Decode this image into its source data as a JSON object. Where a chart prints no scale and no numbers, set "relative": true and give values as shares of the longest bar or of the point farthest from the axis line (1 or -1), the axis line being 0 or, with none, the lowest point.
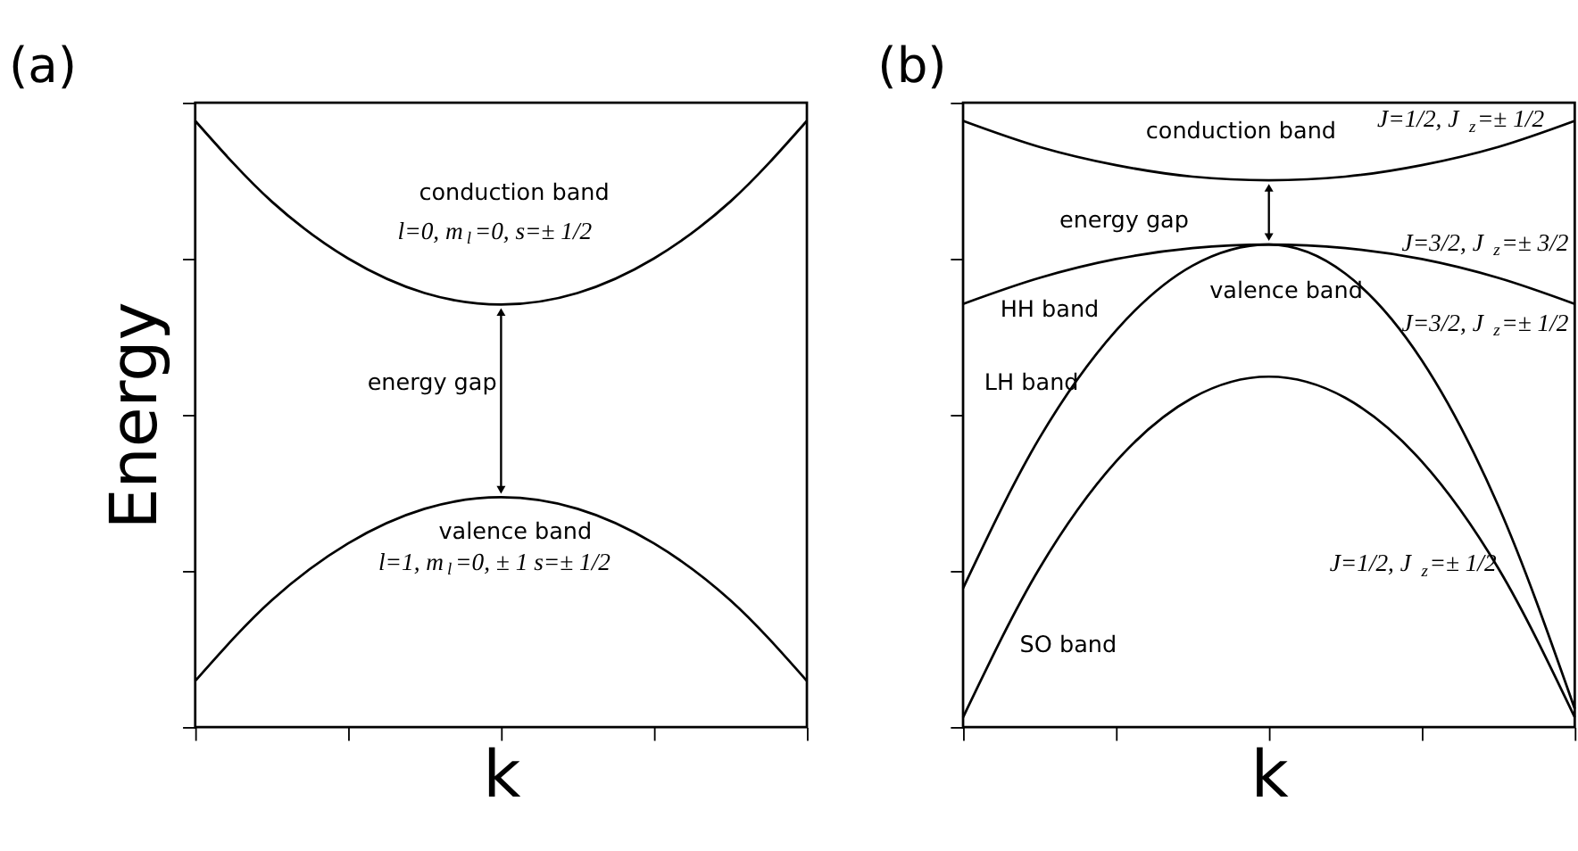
{
  "chart_data": [
    {
      "type": "line",
      "title": "(a)",
      "xlabel": "k",
      "ylabel": "Energy",
      "relative": true,
      "grid": false,
      "legend": false,
      "marker": "none",
      "line_style": "solid",
      "categories": [
        null,
        null,
        null,
        null,
        null,
        null,
        null,
        null,
        null
      ],
      "series": [
        {
          "color": "#000000",
          "values": [
            1,
            0.867,
            0.773,
            0.716,
            0.697,
            0.716,
            0.773,
            0.867,
            1
          ]
        },
        {
          "color": "#000000",
          "values": [
            0.076,
            0.209,
            0.303,
            0.36,
            0.379,
            0.36,
            0.303,
            0.209,
            0.076
          ]
        }
      ],
      "annotations": [
        "conduction band",
        "l=0, m$_{l}$=0, s=± 1/2",
        "energy gap",
        "valence band",
        "l=1, m$_{l}$=0, ± 1 s=± 1/2"
      ]
    },
    {
      "type": "line",
      "title": "(b)",
      "xlabel": "k",
      "relative": true,
      "grid": false,
      "legend": false,
      "marker": "none",
      "line_style": "solid",
      "categories": [
        null,
        null,
        null,
        null,
        null,
        null,
        null,
        null,
        null
      ],
      "series": [
        {
          "color": "#000000",
          "values": [
            1,
            0.957,
            0.927,
            0.908,
            0.902,
            0.908,
            0.927,
            0.957,
            1
          ]
        },
        {
          "color": "#000000",
          "values": [
            0.698,
            0.741,
            0.772,
            0.79,
            0.796,
            0.79,
            0.772,
            0.741,
            0.698
          ]
        },
        {
          "color": "#000000",
          "values": [
            0.229,
            0.477,
            0.654,
            0.761,
            0.796,
            0.748,
            0.605,
            0.365,
            0.03
          ]
        },
        {
          "color": "#000000",
          "values": [
            0.016,
            0.262,
            0.438,
            0.543,
            0.578,
            0.543,
            0.438,
            0.262,
            0.016
          ]
        }
      ],
      "annotations": [
        "conduction band",
        "J=1/2, J$_{z}$=± 1/2",
        "energy gap",
        "J=3/2, J$_{z}$=± 3/2",
        "valence band",
        "HH band",
        "J=3/2, J$_{z}$=± 1/2",
        "LH band",
        "J=1/2, J$_{z}$=± 1/2",
        "SO band"
      ]
    }
  ]
}
